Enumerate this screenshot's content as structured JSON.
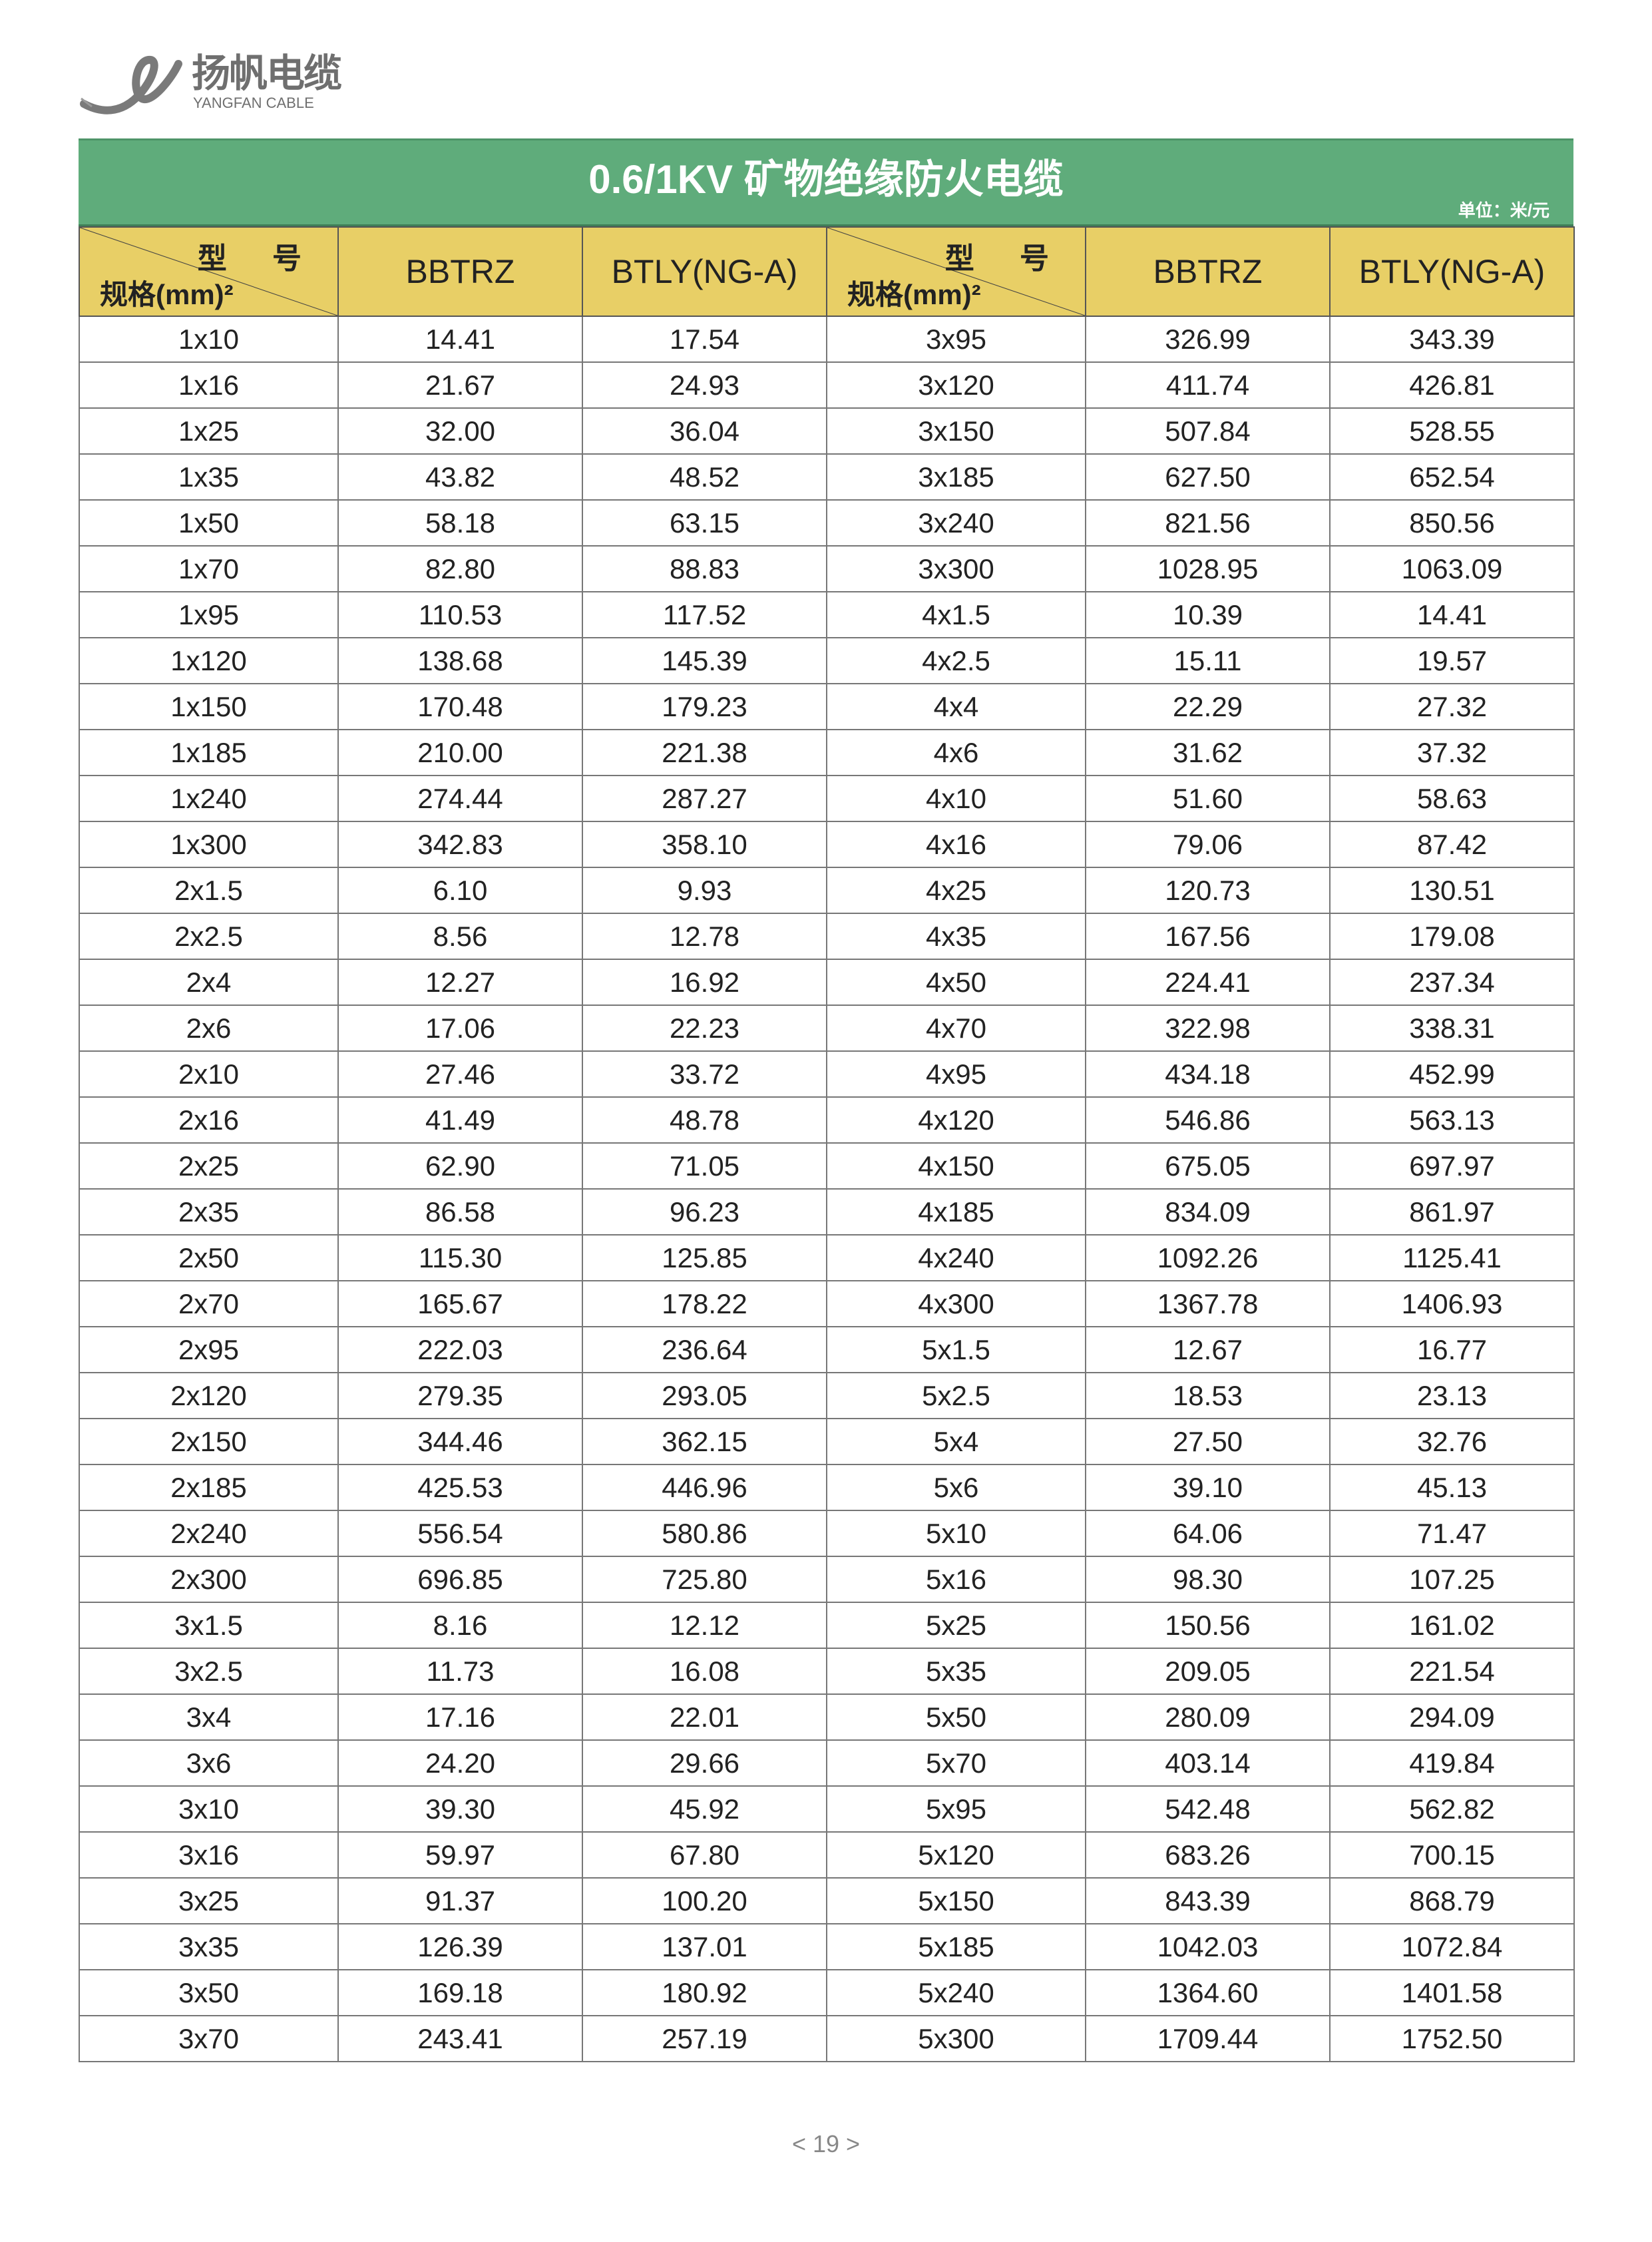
{
  "brand": {
    "name_cn": "扬帆电缆",
    "name_en": "YANGFAN CABLE",
    "color": "#6f6f6f"
  },
  "title": "0.6/1KV 矿物绝缘防火电缆",
  "unit": "单位：米/元",
  "colors": {
    "title_band": "#5fac7b",
    "header": "#e8cf66"
  },
  "header": {
    "model_label": "型 号",
    "spec_label": "规格(mm)²",
    "columns": [
      "BBTRZ",
      "BTLY(NG-A)",
      "BBTRZ",
      "BTLY(NG-A)"
    ]
  },
  "rows": [
    [
      "1x10",
      "14.41",
      "17.54",
      "3x95",
      "326.99",
      "343.39"
    ],
    [
      "1x16",
      "21.67",
      "24.93",
      "3x120",
      "411.74",
      "426.81"
    ],
    [
      "1x25",
      "32.00",
      "36.04",
      "3x150",
      "507.84",
      "528.55"
    ],
    [
      "1x35",
      "43.82",
      "48.52",
      "3x185",
      "627.50",
      "652.54"
    ],
    [
      "1x50",
      "58.18",
      "63.15",
      "3x240",
      "821.56",
      "850.56"
    ],
    [
      "1x70",
      "82.80",
      "88.83",
      "3x300",
      "1028.95",
      "1063.09"
    ],
    [
      "1x95",
      "110.53",
      "117.52",
      "4x1.5",
      "10.39",
      "14.41"
    ],
    [
      "1x120",
      "138.68",
      "145.39",
      "4x2.5",
      "15.11",
      "19.57"
    ],
    [
      "1x150",
      "170.48",
      "179.23",
      "4x4",
      "22.29",
      "27.32"
    ],
    [
      "1x185",
      "210.00",
      "221.38",
      "4x6",
      "31.62",
      "37.32"
    ],
    [
      "1x240",
      "274.44",
      "287.27",
      "4x10",
      "51.60",
      "58.63"
    ],
    [
      "1x300",
      "342.83",
      "358.10",
      "4x16",
      "79.06",
      "87.42"
    ],
    [
      "2x1.5",
      "6.10",
      "9.93",
      "4x25",
      "120.73",
      "130.51"
    ],
    [
      "2x2.5",
      "8.56",
      "12.78",
      "4x35",
      "167.56",
      "179.08"
    ],
    [
      "2x4",
      "12.27",
      "16.92",
      "4x50",
      "224.41",
      "237.34"
    ],
    [
      "2x6",
      "17.06",
      "22.23",
      "4x70",
      "322.98",
      "338.31"
    ],
    [
      "2x10",
      "27.46",
      "33.72",
      "4x95",
      "434.18",
      "452.99"
    ],
    [
      "2x16",
      "41.49",
      "48.78",
      "4x120",
      "546.86",
      "563.13"
    ],
    [
      "2x25",
      "62.90",
      "71.05",
      "4x150",
      "675.05",
      "697.97"
    ],
    [
      "2x35",
      "86.58",
      "96.23",
      "4x185",
      "834.09",
      "861.97"
    ],
    [
      "2x50",
      "115.30",
      "125.85",
      "4x240",
      "1092.26",
      "1125.41"
    ],
    [
      "2x70",
      "165.67",
      "178.22",
      "4x300",
      "1367.78",
      "1406.93"
    ],
    [
      "2x95",
      "222.03",
      "236.64",
      "5x1.5",
      "12.67",
      "16.77"
    ],
    [
      "2x120",
      "279.35",
      "293.05",
      "5x2.5",
      "18.53",
      "23.13"
    ],
    [
      "2x150",
      "344.46",
      "362.15",
      "5x4",
      "27.50",
      "32.76"
    ],
    [
      "2x185",
      "425.53",
      "446.96",
      "5x6",
      "39.10",
      "45.13"
    ],
    [
      "2x240",
      "556.54",
      "580.86",
      "5x10",
      "64.06",
      "71.47"
    ],
    [
      "2x300",
      "696.85",
      "725.80",
      "5x16",
      "98.30",
      "107.25"
    ],
    [
      "3x1.5",
      "8.16",
      "12.12",
      "5x25",
      "150.56",
      "161.02"
    ],
    [
      "3x2.5",
      "11.73",
      "16.08",
      "5x35",
      "209.05",
      "221.54"
    ],
    [
      "3x4",
      "17.16",
      "22.01",
      "5x50",
      "280.09",
      "294.09"
    ],
    [
      "3x6",
      "24.20",
      "29.66",
      "5x70",
      "403.14",
      "419.84"
    ],
    [
      "3x10",
      "39.30",
      "45.92",
      "5x95",
      "542.48",
      "562.82"
    ],
    [
      "3x16",
      "59.97",
      "67.80",
      "5x120",
      "683.26",
      "700.15"
    ],
    [
      "3x25",
      "91.37",
      "100.20",
      "5x150",
      "843.39",
      "868.79"
    ],
    [
      "3x35",
      "126.39",
      "137.01",
      "5x185",
      "1042.03",
      "1072.84"
    ],
    [
      "3x50",
      "169.18",
      "180.92",
      "5x240",
      "1364.60",
      "1401.58"
    ],
    [
      "3x70",
      "243.41",
      "257.19",
      "5x300",
      "1709.44",
      "1752.50"
    ]
  ],
  "page_number": "< 19 >"
}
